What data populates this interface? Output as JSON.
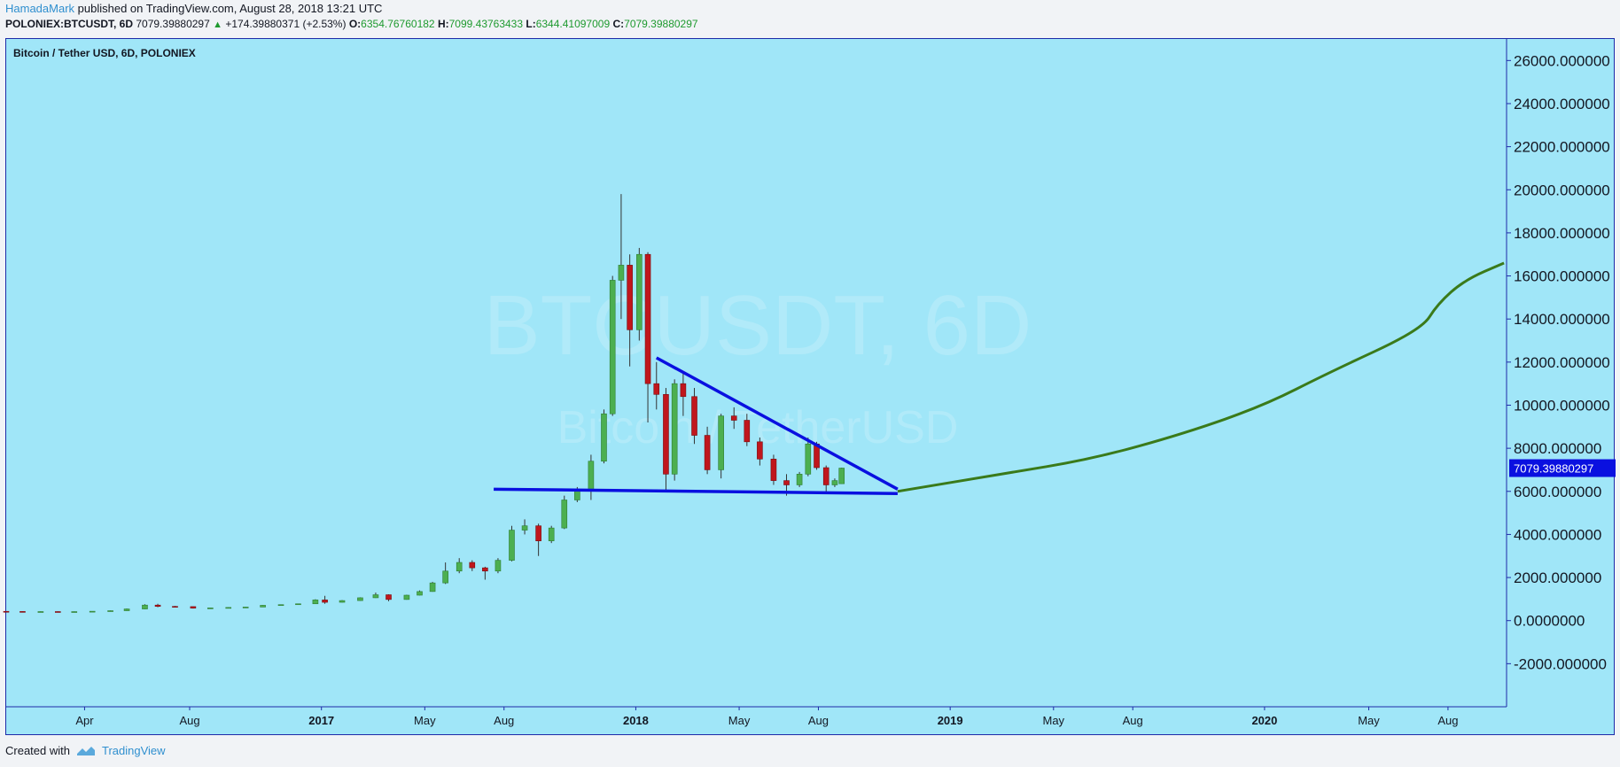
{
  "header": {
    "author": "HamadaMark",
    "published": "published on TradingView.com, August 28, 2018 13:21 UTC",
    "symbol": "POLONIEX:BTCUSDT, 6D",
    "last": "7079.39880297",
    "change": "+174.39880371 (+2.53%)",
    "o_label": "O:",
    "o_value": "6354.76760182",
    "h_label": "H:",
    "h_value": "7099.43763433",
    "l_label": "L:",
    "l_value": "6344.41097009",
    "c_label": "C:",
    "c_value": "7079.39880297"
  },
  "footer": {
    "created_with": "Created with",
    "brand": "TradingView"
  },
  "colors": {
    "background": "#a0e6f8",
    "up": "#4caf50",
    "down": "#c0161c",
    "trendline": "#0a10e0",
    "projection": "#3a7a1a",
    "price_label_bg": "#0a10e0"
  },
  "chart_data": {
    "type": "candlestick",
    "title": "Bitcoin / Tether USD, 6D, POLONIEX",
    "watermark": [
      "BTCUSDT, 6D",
      "Bitcoin / TetherUSD"
    ],
    "y_axis": {
      "ticks": [
        "26000.000000",
        "24000.000000",
        "22000.000000",
        "20000.000000",
        "18000.000000",
        "16000.000000",
        "14000.000000",
        "12000.000000",
        "10000.000000",
        "8000.000000",
        "6000.000000",
        "4000.000000",
        "2000.000000",
        "0.0000000",
        "-2000.000000"
      ],
      "range": [
        -4000,
        27000
      ]
    },
    "x_axis": {
      "ticks": [
        {
          "label": "Apr",
          "date": "2016-04-01",
          "bold": false
        },
        {
          "label": "Aug",
          "date": "2016-08-01",
          "bold": false
        },
        {
          "label": "2017",
          "date": "2017-01-01",
          "bold": true
        },
        {
          "label": "May",
          "date": "2017-05-01",
          "bold": false
        },
        {
          "label": "Aug",
          "date": "2017-08-01",
          "bold": false
        },
        {
          "label": "2018",
          "date": "2018-01-01",
          "bold": true
        },
        {
          "label": "May",
          "date": "2018-05-01",
          "bold": false
        },
        {
          "label": "Aug",
          "date": "2018-08-01",
          "bold": false
        },
        {
          "label": "2019",
          "date": "2019-01-01",
          "bold": true
        },
        {
          "label": "May",
          "date": "2019-05-01",
          "bold": false
        },
        {
          "label": "Aug",
          "date": "2019-08-01",
          "bold": false
        },
        {
          "label": "2020",
          "date": "2020-01-01",
          "bold": true
        },
        {
          "label": "May",
          "date": "2020-05-01",
          "bold": false
        },
        {
          "label": "Aug",
          "date": "2020-08-01",
          "bold": false
        }
      ],
      "range": [
        "2016-01-01",
        "2020-10-08"
      ]
    },
    "candles": [
      [
        "2016-01-01",
        430,
        440,
        420,
        425
      ],
      [
        "2016-01-20",
        425,
        435,
        380,
        390
      ],
      [
        "2016-02-10",
        390,
        430,
        385,
        420
      ],
      [
        "2016-03-01",
        420,
        430,
        405,
        415
      ],
      [
        "2016-03-20",
        415,
        425,
        410,
        418
      ],
      [
        "2016-04-10",
        418,
        440,
        415,
        435
      ],
      [
        "2016-05-01",
        435,
        470,
        430,
        460
      ],
      [
        "2016-05-20",
        460,
        560,
        450,
        540
      ],
      [
        "2016-06-10",
        540,
        760,
        530,
        720
      ],
      [
        "2016-06-25",
        720,
        780,
        620,
        660
      ],
      [
        "2016-07-15",
        660,
        680,
        640,
        650
      ],
      [
        "2016-08-05",
        650,
        660,
        560,
        580
      ],
      [
        "2016-08-25",
        580,
        600,
        570,
        590
      ],
      [
        "2016-09-15",
        590,
        620,
        585,
        610
      ],
      [
        "2016-10-05",
        610,
        640,
        600,
        630
      ],
      [
        "2016-10-25",
        630,
        720,
        625,
        710
      ],
      [
        "2016-11-15",
        710,
        750,
        700,
        740
      ],
      [
        "2016-12-05",
        740,
        790,
        735,
        780
      ],
      [
        "2016-12-25",
        780,
        990,
        770,
        960
      ],
      [
        "2017-01-05",
        960,
        1150,
        780,
        850
      ],
      [
        "2017-01-25",
        850,
        950,
        840,
        930
      ],
      [
        "2017-02-15",
        930,
        1080,
        920,
        1060
      ],
      [
        "2017-03-05",
        1060,
        1300,
        1050,
        1200
      ],
      [
        "2017-03-20",
        1200,
        1220,
        900,
        980
      ],
      [
        "2017-04-10",
        980,
        1200,
        970,
        1180
      ],
      [
        "2017-04-25",
        1180,
        1400,
        1170,
        1350
      ],
      [
        "2017-05-10",
        1350,
        1800,
        1340,
        1750
      ],
      [
        "2017-05-25",
        1750,
        2700,
        1700,
        2300
      ],
      [
        "2017-06-10",
        2300,
        2900,
        2200,
        2700
      ],
      [
        "2017-06-25",
        2700,
        2800,
        2300,
        2450
      ],
      [
        "2017-07-10",
        2450,
        2500,
        1900,
        2300
      ],
      [
        "2017-07-25",
        2300,
        2900,
        2200,
        2800
      ],
      [
        "2017-08-10",
        2800,
        4400,
        2750,
        4200
      ],
      [
        "2017-08-25",
        4200,
        4700,
        4000,
        4400
      ],
      [
        "2017-09-10",
        4400,
        4500,
        3000,
        3700
      ],
      [
        "2017-09-25",
        3700,
        4400,
        3600,
        4300
      ],
      [
        "2017-10-10",
        4300,
        5800,
        4250,
        5600
      ],
      [
        "2017-10-25",
        5600,
        6200,
        5500,
        6100
      ],
      [
        "2017-11-10",
        6100,
        7700,
        5600,
        7400
      ],
      [
        "2017-11-25",
        7400,
        9800,
        7300,
        9600
      ],
      [
        "2017-12-05",
        9600,
        16000,
        9500,
        15800
      ],
      [
        "2017-12-15",
        15800,
        19800,
        14000,
        16500
      ],
      [
        "2017-12-25",
        16500,
        17000,
        11800,
        13500
      ],
      [
        "2018-01-05",
        13500,
        17300,
        13000,
        17000
      ],
      [
        "2018-01-15",
        17000,
        17100,
        9200,
        11000
      ],
      [
        "2018-01-25",
        11000,
        12000,
        9800,
        10500
      ],
      [
        "2018-02-05",
        10500,
        10800,
        6000,
        6800
      ],
      [
        "2018-02-15",
        6800,
        11200,
        6500,
        11000
      ],
      [
        "2018-02-25",
        11000,
        11500,
        9500,
        10400
      ],
      [
        "2018-03-10",
        10400,
        10800,
        8200,
        8600
      ],
      [
        "2018-03-25",
        8600,
        9000,
        6800,
        7000
      ],
      [
        "2018-04-10",
        7000,
        9600,
        6600,
        9500
      ],
      [
        "2018-04-25",
        9500,
        9900,
        8900,
        9300
      ],
      [
        "2018-05-10",
        9300,
        9600,
        8100,
        8300
      ],
      [
        "2018-05-25",
        8300,
        8500,
        7200,
        7500
      ],
      [
        "2018-06-10",
        7500,
        7700,
        6300,
        6500
      ],
      [
        "2018-06-25",
        6500,
        6800,
        5800,
        6300
      ],
      [
        "2018-07-10",
        6300,
        6900,
        6200,
        6800
      ],
      [
        "2018-07-20",
        6800,
        8500,
        6700,
        8200
      ],
      [
        "2018-07-30",
        8200,
        8300,
        7000,
        7100
      ],
      [
        "2018-08-10",
        7100,
        7200,
        5900,
        6300
      ],
      [
        "2018-08-20",
        6300,
        6600,
        6200,
        6500
      ],
      [
        "2018-08-28",
        6354.77,
        7099.44,
        6344.41,
        7079.4
      ]
    ],
    "drawings": {
      "triangle_top": [
        [
          "2018-01-25",
          12200
        ],
        [
          "2018-11-01",
          6100
        ]
      ],
      "triangle_bottom": [
        [
          "2017-07-20",
          6100
        ],
        [
          "2018-11-01",
          5900
        ]
      ],
      "projection": [
        [
          "2018-11-01",
          6000
        ],
        [
          "2019-03-01",
          6800
        ],
        [
          "2019-06-15",
          7500
        ],
        [
          "2019-10-01",
          8700
        ],
        [
          "2020-01-01",
          10000
        ],
        [
          "2020-03-15",
          11500
        ],
        [
          "2020-07-01",
          13500
        ],
        [
          "2020-07-20",
          14700
        ],
        [
          "2020-08-20",
          15800
        ],
        [
          "2020-10-05",
          16600
        ]
      ]
    },
    "price_label": "7079.39880297"
  }
}
